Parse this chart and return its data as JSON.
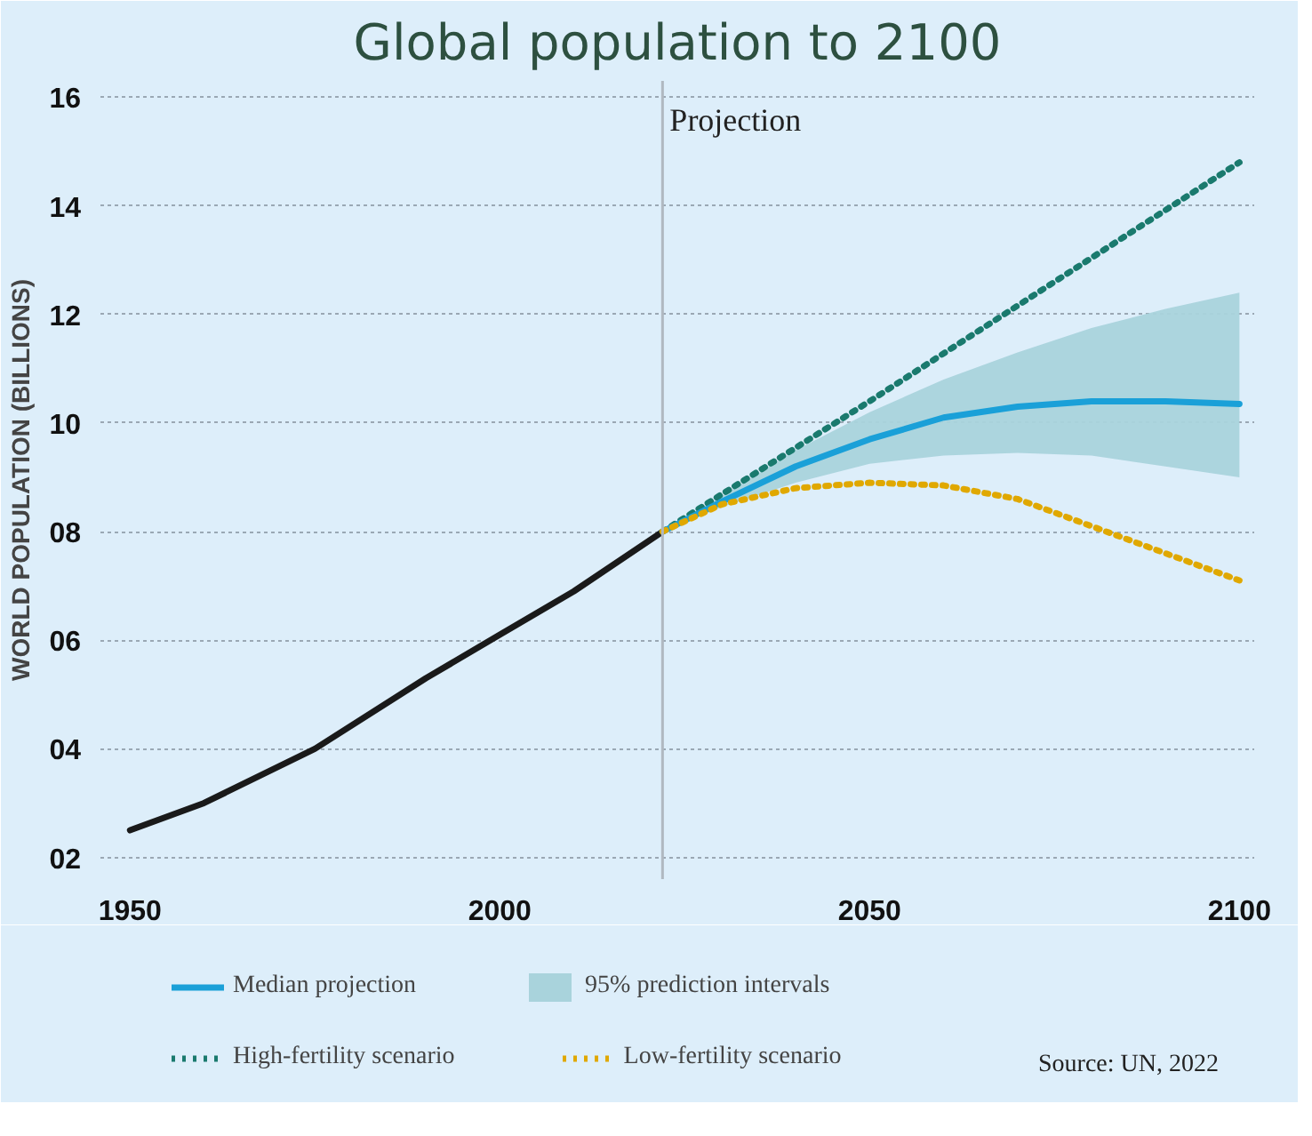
{
  "chart_data": {
    "type": "line",
    "title": "Global population to 2100",
    "ylabel": "WORLD POPULATION (BILLIONS)",
    "xlim": [
      1946,
      2102
    ],
    "ylim": [
      1.6,
      16.3
    ],
    "xticks": [
      1950,
      2000,
      2050,
      2100
    ],
    "yticks": [
      {
        "value": 2,
        "label": "02"
      },
      {
        "value": 4,
        "label": "04"
      },
      {
        "value": 6,
        "label": "06"
      },
      {
        "value": 8,
        "label": "08"
      },
      10,
      12,
      14,
      16
    ],
    "grid": "y",
    "legend": "bottom",
    "marker": "none",
    "ref_lines": [
      {
        "axis": "x",
        "value": 2022,
        "label": "Projection",
        "color": "#b0b8c0",
        "line_style": "solid"
      }
    ],
    "annotations": [
      "Source: UN, 2022"
    ],
    "series": [
      {
        "name": "95% prediction intervals",
        "type": "area",
        "color": "#a9d3dc",
        "x": [
          2022,
          2030,
          2040,
          2050,
          2060,
          2070,
          2080,
          2090,
          2100
        ],
        "values": [
          null,
          null,
          null,
          null,
          null,
          null,
          null,
          null,
          null
        ],
        "lower": [
          8.0,
          8.45,
          8.9,
          9.25,
          9.4,
          9.45,
          9.4,
          9.2,
          9.0
        ],
        "upper": [
          8.0,
          8.65,
          9.5,
          10.2,
          10.8,
          11.3,
          11.75,
          12.1,
          12.4
        ]
      },
      {
        "color": "#1a1a1a",
        "line_style": "solid",
        "x": [
          1950,
          1960,
          1975,
          1990,
          2000,
          2010,
          2022
        ],
        "values": [
          2.5,
          3.0,
          4.0,
          5.3,
          6.1,
          6.9,
          8.0
        ]
      },
      {
        "name": "High-fertility scenario",
        "color": "#1a7a6e",
        "line_style": "dotted",
        "x": [
          2022,
          2050,
          2075,
          2100
        ],
        "values": [
          8.0,
          10.4,
          12.6,
          14.8
        ]
      },
      {
        "name": "Median projection",
        "color": "#1aa0d8",
        "line_style": "solid",
        "x": [
          2022,
          2030,
          2040,
          2050,
          2060,
          2070,
          2080,
          2090,
          2100
        ],
        "values": [
          8.0,
          8.55,
          9.2,
          9.7,
          10.1,
          10.3,
          10.4,
          10.4,
          10.35
        ]
      },
      {
        "name": "Low-fertility scenario",
        "color": "#e0a800",
        "line_style": "dotted",
        "x": [
          2022,
          2030,
          2040,
          2050,
          2060,
          2070,
          2080,
          2090,
          2100
        ],
        "values": [
          8.0,
          8.5,
          8.8,
          8.9,
          8.85,
          8.6,
          8.1,
          7.6,
          7.1
        ]
      }
    ]
  }
}
